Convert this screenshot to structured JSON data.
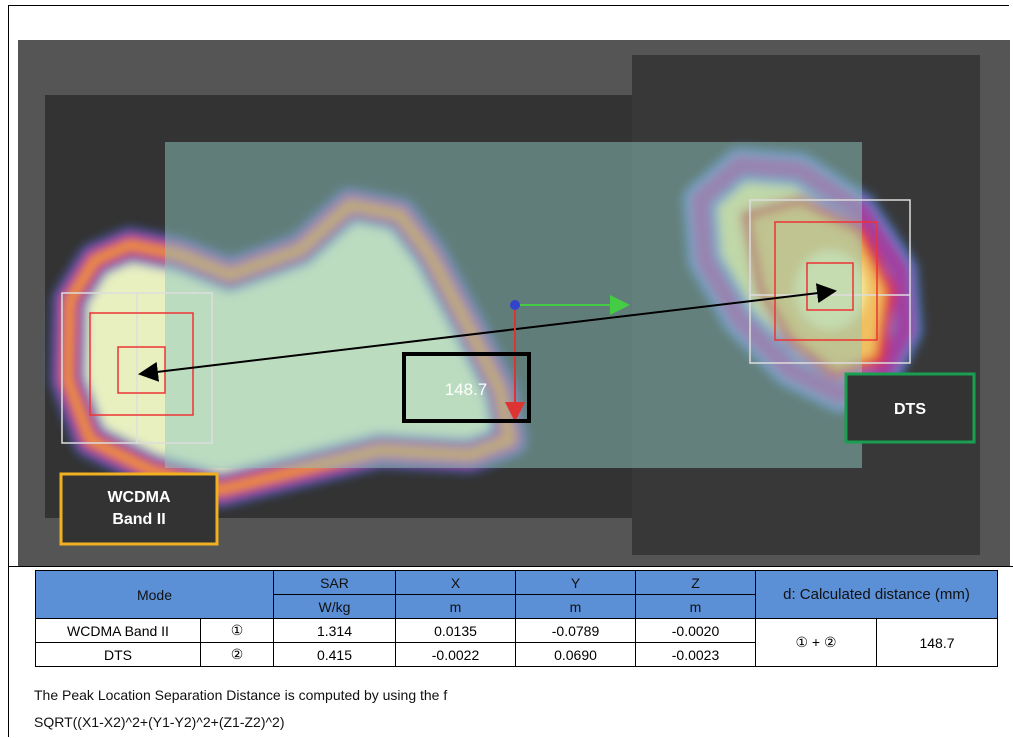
{
  "image": {
    "distance_label": "148.7",
    "dts_label": "DTS",
    "wcdma_label": [
      "WCDMA",
      "Band II"
    ]
  },
  "table": {
    "header_top": [
      "Mode",
      "SAR",
      "X",
      "Y",
      "Z",
      "d: Calculated distance (mm)"
    ],
    "header_units": [
      "W/kg",
      "m",
      "m",
      "m"
    ],
    "rows": [
      [
        "WCDMA Band II",
        "①",
        "1.314",
        "0.0135",
        "-0.0789",
        "-0.0020",
        "① + ②",
        "148.7"
      ],
      [
        "DTS",
        "②",
        "0.415",
        "-0.0022",
        "0.0690",
        "-0.0023"
      ]
    ]
  },
  "notes": [
    "The Peak Location Separation Distance is computed by using the f",
    "SQRT((X1-X2)^2+(Y1-Y2)^2+(Z1-Z2)^2)"
  ]
}
